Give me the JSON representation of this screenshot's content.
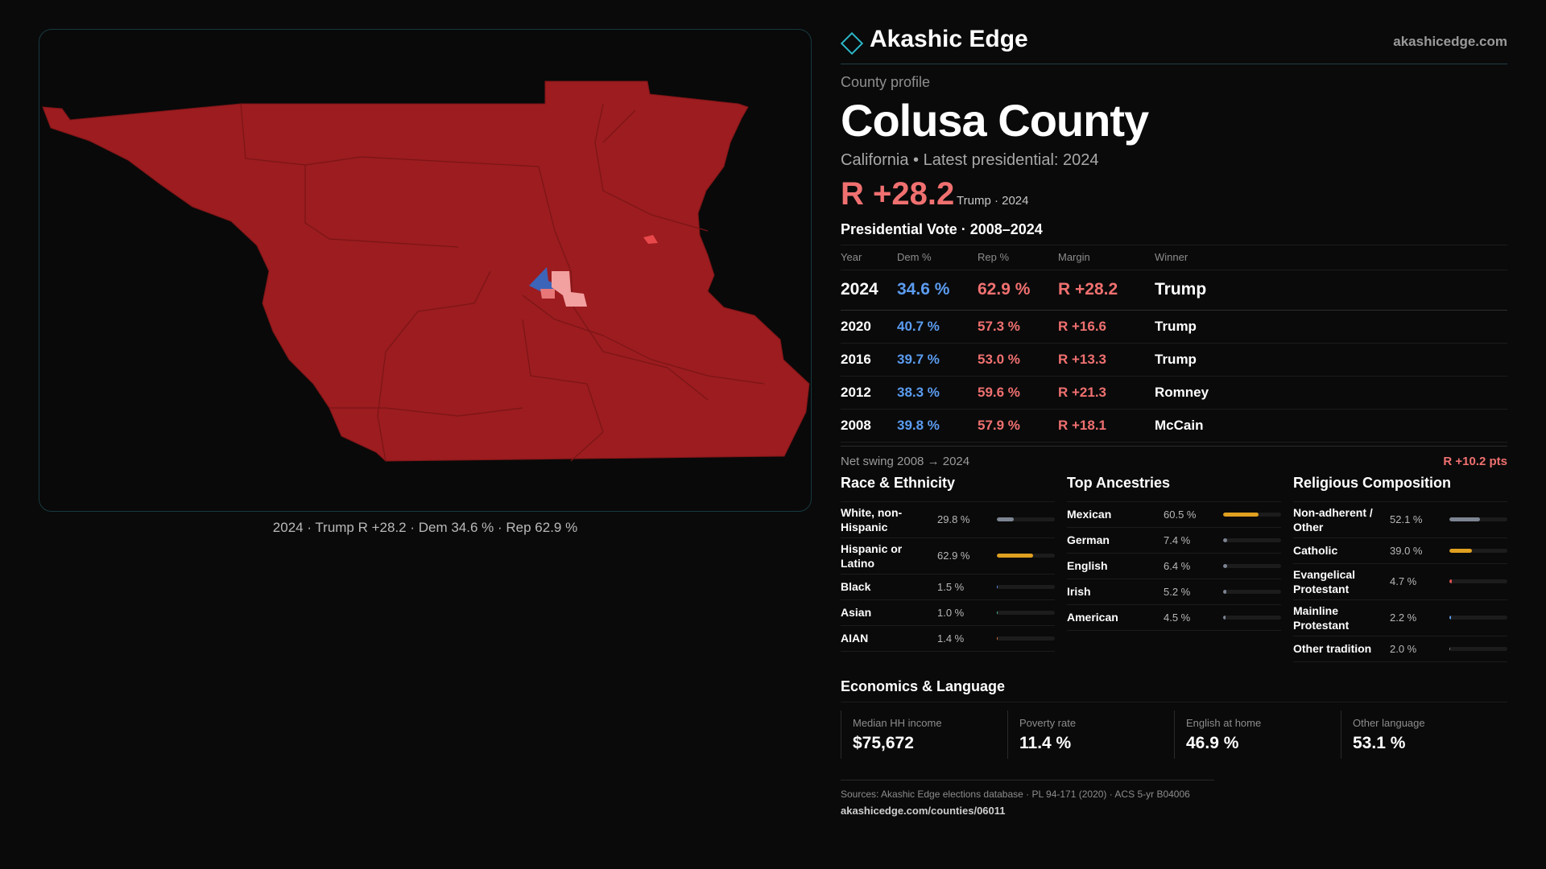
{
  "brand": {
    "name": "Akashic Edge",
    "site": "akashicedge.com",
    "logo_icon": "diamond-outline-icon",
    "accent": "#2bb7c8"
  },
  "map": {
    "caption": "2024 · Trump R +28.2 · Dem 34.6 % · Rep 62.9 %",
    "colors": {
      "rep_strong": "#9c1c1f",
      "rep_light": "#f2a0a0",
      "rep_mid": "#e8484a",
      "dem": "#3c64b8",
      "border": "#173a40"
    }
  },
  "profile": {
    "eyebrow": "County profile",
    "title": "Colusa County",
    "subtitle": "California • Latest presidential: 2024",
    "margin": "R +28.2",
    "margin_sub": "Trump · 2024"
  },
  "presidential": {
    "title": "Presidential Vote · 2008–2024",
    "headers": {
      "year": "Year",
      "dem": "Dem %",
      "rep": "Rep %",
      "margin": "Margin",
      "winner": "Winner"
    },
    "rows": [
      {
        "year": "2024",
        "dem": "34.6 %",
        "rep": "62.9 %",
        "margin": "R +28.2",
        "winner": "Trump"
      },
      {
        "year": "2020",
        "dem": "40.7 %",
        "rep": "57.3 %",
        "margin": "R +16.6",
        "winner": "Trump"
      },
      {
        "year": "2016",
        "dem": "39.7 %",
        "rep": "53.0 %",
        "margin": "R +13.3",
        "winner": "Trump"
      },
      {
        "year": "2012",
        "dem": "38.3 %",
        "rep": "59.6 %",
        "margin": "R +21.3",
        "winner": "Romney"
      },
      {
        "year": "2008",
        "dem": "39.8 %",
        "rep": "57.9 %",
        "margin": "R +18.1",
        "winner": "McCain"
      }
    ],
    "swing_label": "Net swing 2008 → 2024",
    "swing_value": "R +10.2 pts"
  },
  "race": {
    "title": "Race & Ethnicity",
    "items": [
      {
        "label": "White, non-Hispanic",
        "value": "29.8 %",
        "pct": 29.8,
        "color": "#7d8593"
      },
      {
        "label": "Hispanic or Latino",
        "value": "62.9 %",
        "pct": 62.9,
        "color": "#e0a020"
      },
      {
        "label": "Black",
        "value": "1.5 %",
        "pct": 1.5,
        "color": "#5b9cf0"
      },
      {
        "label": "Asian",
        "value": "1.0 %",
        "pct": 1.0,
        "color": "#4fb8a8"
      },
      {
        "label": "AIAN",
        "value": "1.4 %",
        "pct": 1.4,
        "color": "#e07040"
      }
    ]
  },
  "ancestry": {
    "title": "Top Ancestries",
    "items": [
      {
        "label": "Mexican",
        "value": "60.5 %",
        "pct": 60.5,
        "color": "#e0a020"
      },
      {
        "label": "German",
        "value": "7.4 %",
        "pct": 7.4,
        "color": "#7d8593"
      },
      {
        "label": "English",
        "value": "6.4 %",
        "pct": 6.4,
        "color": "#7d8593"
      },
      {
        "label": "Irish",
        "value": "5.2 %",
        "pct": 5.2,
        "color": "#7d8593"
      },
      {
        "label": "American",
        "value": "4.5 %",
        "pct": 4.5,
        "color": "#7d8593"
      }
    ]
  },
  "religion": {
    "title": "Religious Composition",
    "items": [
      {
        "label": "Non-adherent / Other",
        "value": "52.1 %",
        "pct": 52.1,
        "color": "#7d8593"
      },
      {
        "label": "Catholic",
        "value": "39.0 %",
        "pct": 39.0,
        "color": "#e0a020"
      },
      {
        "label": "Evangelical Protestant",
        "value": "4.7 %",
        "pct": 4.7,
        "color": "#e05050"
      },
      {
        "label": "Mainline Protestant",
        "value": "2.2 %",
        "pct": 2.2,
        "color": "#5b9cf0"
      },
      {
        "label": "Other tradition",
        "value": "2.0 %",
        "pct": 2.0,
        "color": "#7d8593"
      }
    ]
  },
  "economics": {
    "title": "Economics & Language",
    "cards": [
      {
        "label": "Median HH income",
        "value": "$75,672"
      },
      {
        "label": "Poverty rate",
        "value": "11.4 %"
      },
      {
        "label": "English at home",
        "value": "46.9 %"
      },
      {
        "label": "Other language",
        "value": "53.1 %"
      }
    ]
  },
  "sources": {
    "line": "Sources: Akashic Edge elections database · PL 94-171 (2020) · ACS 5-yr B04006",
    "url": "akashicedge.com/counties/06011"
  }
}
